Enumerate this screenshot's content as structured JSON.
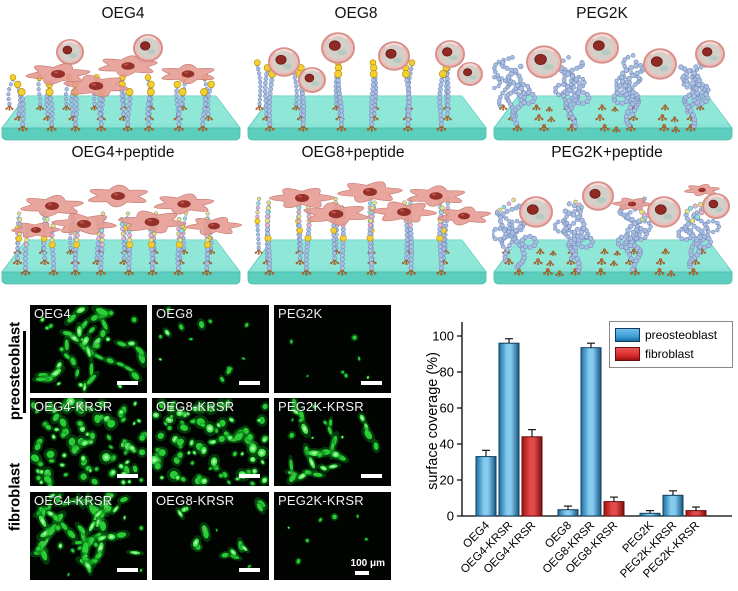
{
  "figure": {
    "top_panels": [
      {
        "label": "OEG4",
        "brush": "short",
        "peptide": false,
        "cells": {
          "spread": 4,
          "round": 2
        }
      },
      {
        "label": "OEG8",
        "brush": "medium",
        "peptide": false,
        "cells": {
          "spread": 0,
          "round": 6
        }
      },
      {
        "label": "PEG2K",
        "brush": "long-coiled",
        "peptide": false,
        "cells": {
          "spread": 0,
          "round": 4
        }
      },
      {
        "label": "OEG4+peptide",
        "brush": "short",
        "peptide": true,
        "cells": {
          "spread": 7,
          "round": 0
        }
      },
      {
        "label": "OEG8+peptide",
        "brush": "medium",
        "peptide": true,
        "cells": {
          "spread": 6,
          "round": 0
        }
      },
      {
        "label": "PEG2K+peptide",
        "brush": "long-coiled",
        "peptide": true,
        "cells": {
          "spread": 2,
          "round": 4
        }
      }
    ],
    "microscopy": {
      "group_labels": [
        {
          "label": "preosteoblast",
          "rows": [
            0,
            1
          ]
        },
        {
          "label": "fibroblast",
          "rows": [
            2
          ]
        }
      ],
      "panels": [
        {
          "label": "OEG4",
          "appearance": "network-medium"
        },
        {
          "label": "OEG8",
          "appearance": "dots-sparse"
        },
        {
          "label": "PEG2K",
          "appearance": "dots-rare"
        },
        {
          "label": "OEG4-KRSR",
          "appearance": "dense"
        },
        {
          "label": "OEG8-KRSR",
          "appearance": "dense"
        },
        {
          "label": "PEG2K-KRSR",
          "appearance": "network-sparse"
        },
        {
          "label": "OEG4-KRSR",
          "appearance": "network-dense"
        },
        {
          "label": "OEG8-KRSR",
          "appearance": "clusters-sparse"
        },
        {
          "label": "PEG2K-KRSR",
          "appearance": "dots-rare"
        }
      ],
      "scale_bar_text": "100 μm"
    },
    "chart_data": {
      "type": "bar",
      "title": "",
      "ylabel": "surface coverage (%)",
      "xlabel": "",
      "ylim": [
        0,
        110
      ],
      "yticks": [
        0,
        20,
        40,
        60,
        80,
        100
      ],
      "grid": false,
      "legend_position": "top-right",
      "categories": [
        "OEG4",
        "OEG4-KRSR",
        "OEG4-KRSR",
        "OEG8",
        "OEG8-KRSR",
        "OEG8-KRSR",
        "PEG2K",
        "PEG2K-KRSR",
        "PEG2K-KRSR"
      ],
      "series_per_bar": [
        "preosteoblast",
        "preosteoblast",
        "fibroblast",
        "preosteoblast",
        "preosteoblast",
        "fibroblast",
        "preosteoblast",
        "preosteoblast",
        "fibroblast"
      ],
      "values": [
        33,
        96,
        44,
        3.5,
        93.5,
        8,
        1.5,
        11.5,
        3
      ],
      "errors": [
        3.5,
        2.5,
        4,
        2,
        2.5,
        2.5,
        1.5,
        2.5,
        2
      ],
      "legend": [
        {
          "label": "preosteoblast",
          "color": "#3E9FD8"
        },
        {
          "label": "fibroblast",
          "color": "#DD2C2C"
        }
      ]
    },
    "colors": {
      "bar_blue": "#3E9FD8",
      "bar_blue_dark": "#123C5C",
      "bar_red": "#DD2C2C",
      "bar_red_dark": "#6B0A0A",
      "cell_green": "#2FE53B",
      "substrate_teal": "#7CE0D1",
      "chain_blue": "#A8BEE2",
      "tip_yellow": "#F3CF2F",
      "anchor_orange": "#C06A28",
      "cell_pink": "#E59A92",
      "nucleus_red": "#8F2A24"
    }
  }
}
